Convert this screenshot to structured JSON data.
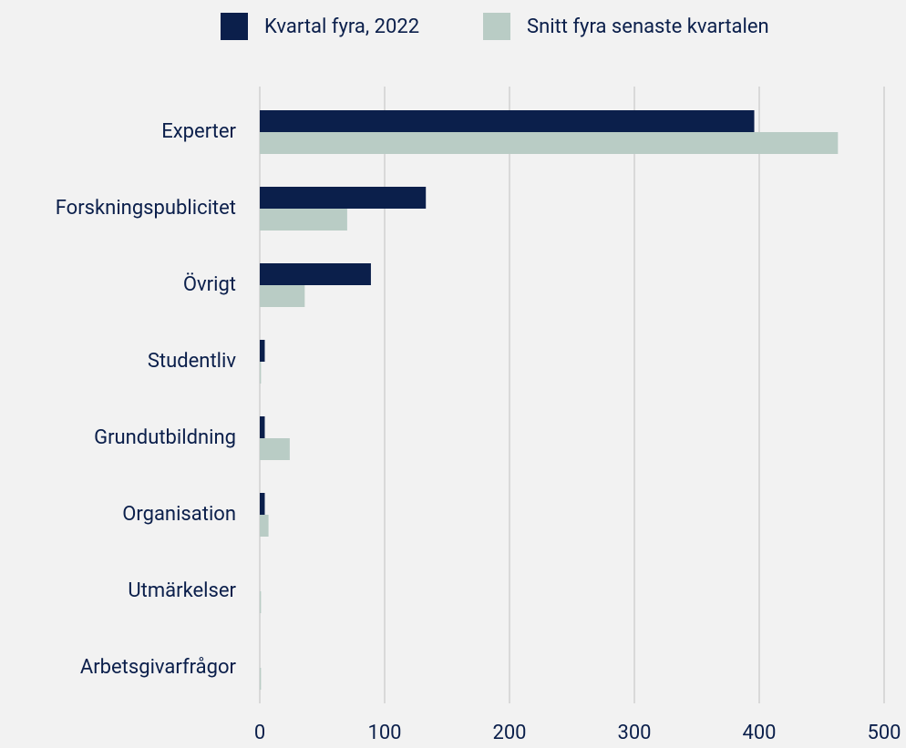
{
  "chart_data": {
    "type": "barh",
    "categories": [
      "Experter",
      "Forskningspublicitet",
      "Övrigt",
      "Studentliv",
      "Grundutbildning",
      "Organisation",
      "Utmärkelser",
      "Arbetsgivarfrågor"
    ],
    "series": [
      {
        "name": "Kvartal fyra, 2022",
        "color": "#0b1f4b",
        "values": [
          396,
          133,
          89,
          4,
          4,
          4,
          0,
          0
        ]
      },
      {
        "name": "Snitt fyra senaste kvartalen",
        "color": "#b9ccc5",
        "values": [
          463,
          70,
          36,
          1,
          24,
          7,
          1,
          1
        ]
      }
    ],
    "xlim": [
      0,
      500
    ],
    "xticks": [
      0,
      100,
      200,
      300,
      400,
      500
    ],
    "grid": true,
    "legend": "top"
  }
}
